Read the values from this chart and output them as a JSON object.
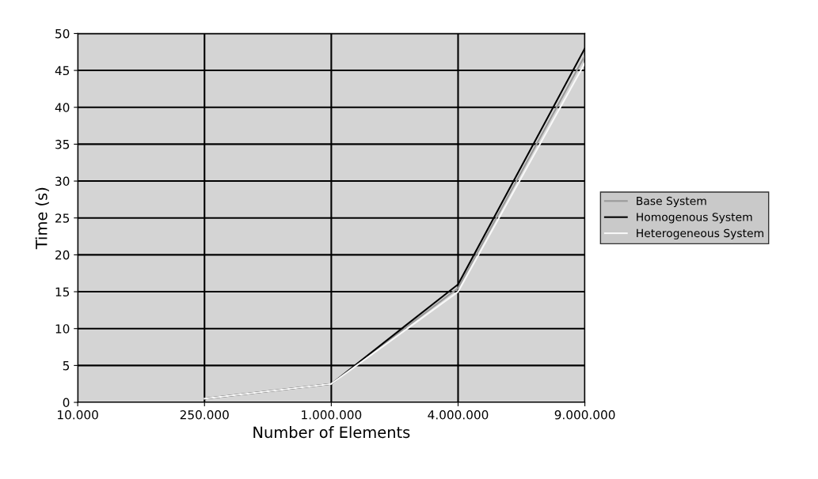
{
  "chart_data": {
    "type": "line",
    "xlabel": "Number of Elements",
    "ylabel": "Time (s)",
    "categories": [
      "10.000",
      "250.000",
      "1.000.000",
      "4.000.000",
      "9.000.000"
    ],
    "series": [
      {
        "name": "Base System",
        "color": "#9a9a9a",
        "values": [
          null,
          0.5,
          2.5,
          15.5,
          47
        ]
      },
      {
        "name": "Homogenous System",
        "color": "#000000",
        "values": [
          null,
          0.5,
          2.5,
          16,
          48
        ]
      },
      {
        "name": "Heterogeneous System",
        "color": "#f8f8f8",
        "values": [
          null,
          0.5,
          2.5,
          15,
          46
        ]
      }
    ],
    "ylim": [
      0,
      50
    ],
    "yticks": [
      0,
      5,
      10,
      15,
      20,
      25,
      30,
      35,
      40,
      45,
      50
    ],
    "grid": true,
    "legend": "right",
    "marker": "none",
    "line_style": "solid"
  }
}
